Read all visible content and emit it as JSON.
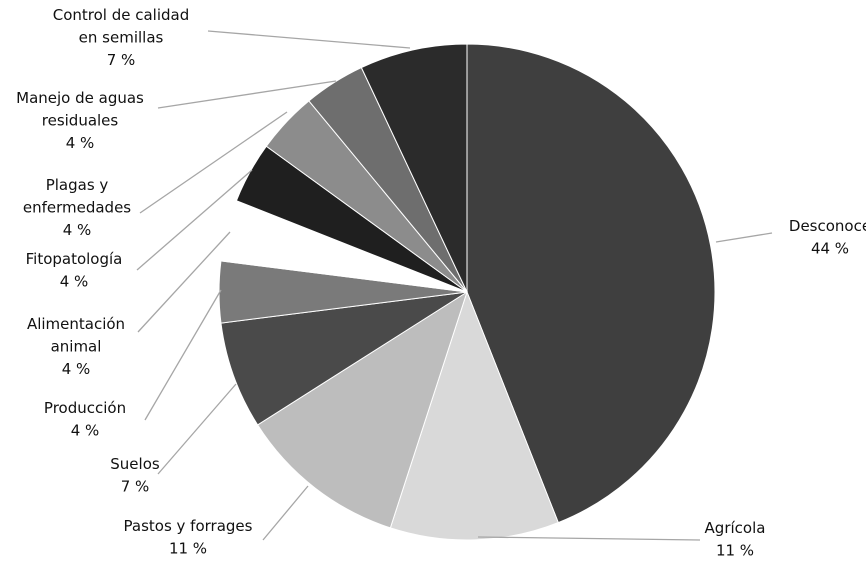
{
  "chart_data": {
    "type": "pie",
    "title": "",
    "unit": "%",
    "start_angle_deg": 0,
    "direction": "clockwise",
    "slices": [
      {
        "label": "Desconoce",
        "lines": [
          "Desconoce"
        ],
        "pct_text": "44 %",
        "value": 44,
        "color": "#3f3f3f"
      },
      {
        "label": "Agrícola",
        "lines": [
          "Agrícola"
        ],
        "pct_text": "11 %",
        "value": 11,
        "color": "#d9d9d9"
      },
      {
        "label": "Pastos y forrages",
        "lines": [
          "Pastos y forrages"
        ],
        "pct_text": "11 %",
        "value": 11,
        "color": "#bdbdbd"
      },
      {
        "label": "Suelos",
        "lines": [
          "Suelos"
        ],
        "pct_text": "7 %",
        "value": 7,
        "color": "#4a4a4a"
      },
      {
        "label": "Producción",
        "lines": [
          "Producción"
        ],
        "pct_text": "4 %",
        "value": 4,
        "color": "#7a7a7a"
      },
      {
        "label": "Alimentación animal",
        "lines": [
          "Alimentación",
          "animal"
        ],
        "pct_text": "4 %",
        "value": 4,
        "color": "#ffffff"
      },
      {
        "label": "Fitopatología",
        "lines": [
          "Fitopatología"
        ],
        "pct_text": "4 %",
        "value": 4,
        "color": "#1f1f1f"
      },
      {
        "label": "Plagas y enfermedades",
        "lines": [
          "Plagas y",
          "enfermedades"
        ],
        "pct_text": "4 %",
        "value": 4,
        "color": "#8c8c8c"
      },
      {
        "label": "Manejo de aguas residuales",
        "lines": [
          "Manejo de aguas",
          "residuales"
        ],
        "pct_text": "4 %",
        "value": 4,
        "color": "#6e6e6e"
      },
      {
        "label": "Control de calidad en semillas",
        "lines": [
          "Control de calidad",
          "en semillas"
        ],
        "pct_text": "7 %",
        "value": 7,
        "color": "#2b2b2b"
      }
    ]
  }
}
